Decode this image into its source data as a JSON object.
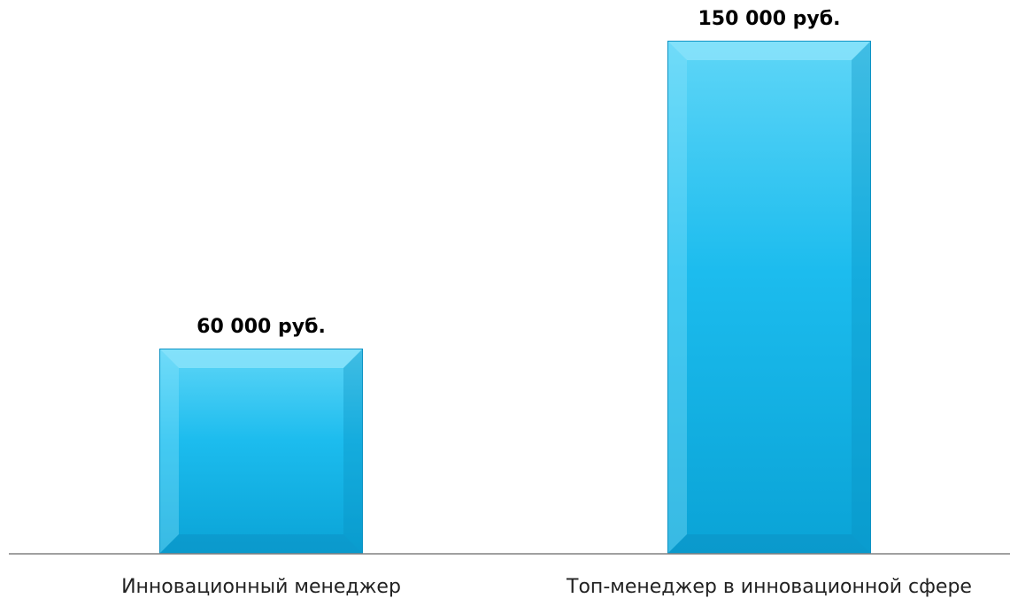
{
  "chart_data": {
    "type": "bar",
    "categories": [
      "Инновационный менеджер",
      "Топ-менеджер в инновационной сфере"
    ],
    "values": [
      60000,
      150000
    ],
    "data_labels": [
      "60 000 руб.",
      "150 000 руб."
    ],
    "title": "",
    "xlabel": "",
    "ylabel": "",
    "ylim": [
      0,
      150000
    ],
    "grid": false,
    "legend": "none",
    "colors": {
      "bar_top": "#5fd6f7",
      "bar_mid": "#16b7ec",
      "bar_bottom": "#0aa3d6",
      "bevel_light": "#8fe4fb",
      "bevel_dark": "#0a8fc0",
      "axis": "#808080"
    }
  }
}
